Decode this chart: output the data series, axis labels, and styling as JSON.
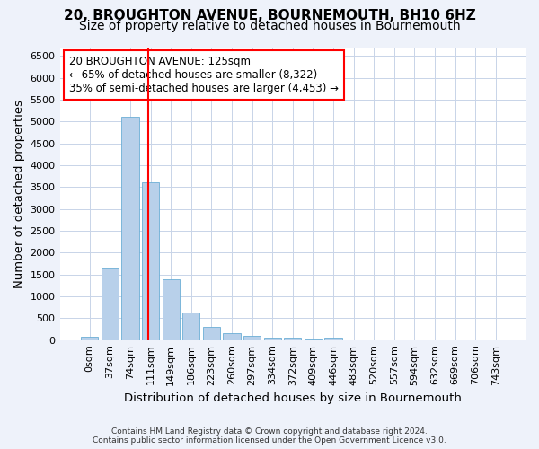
{
  "title1": "20, BROUGHTON AVENUE, BOURNEMOUTH, BH10 6HZ",
  "title2": "Size of property relative to detached houses in Bournemouth",
  "xlabel": "Distribution of detached houses by size in Bournemouth",
  "ylabel": "Number of detached properties",
  "footnote1": "Contains HM Land Registry data © Crown copyright and database right 2024.",
  "footnote2": "Contains public sector information licensed under the Open Government Licence v3.0.",
  "bar_labels": [
    "0sqm",
    "37sqm",
    "74sqm",
    "111sqm",
    "149sqm",
    "186sqm",
    "223sqm",
    "260sqm",
    "297sqm",
    "334sqm",
    "372sqm",
    "409sqm",
    "446sqm",
    "483sqm",
    "520sqm",
    "557sqm",
    "594sqm",
    "632sqm",
    "669sqm",
    "706sqm",
    "743sqm"
  ],
  "bar_values": [
    75,
    1650,
    5100,
    3600,
    1400,
    620,
    310,
    155,
    100,
    55,
    45,
    20,
    55,
    0,
    0,
    0,
    0,
    0,
    0,
    0,
    0
  ],
  "bar_color": "#b8d0ea",
  "bar_edge_color": "#6baed6",
  "grid_color": "#c8d4e8",
  "vline_x": 2.88,
  "vline_color": "red",
  "annotation_text": "20 BROUGHTON AVENUE: 125sqm\n← 65% of detached houses are smaller (8,322)\n35% of semi-detached houses are larger (4,453) →",
  "annotation_box_color": "white",
  "annotation_box_edge": "red",
  "ylim": [
    0,
    6700
  ],
  "yticks": [
    0,
    500,
    1000,
    1500,
    2000,
    2500,
    3000,
    3500,
    4000,
    4500,
    5000,
    5500,
    6000,
    6500
  ],
  "bg_color": "#eef2fa",
  "plot_bg_color": "#ffffff",
  "title1_fontsize": 11,
  "title2_fontsize": 10,
  "axis_label_fontsize": 9.5,
  "tick_fontsize": 8,
  "annotation_fontsize": 8.5
}
